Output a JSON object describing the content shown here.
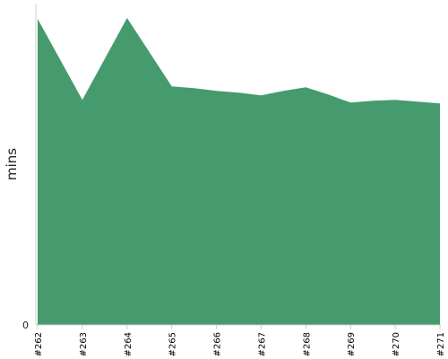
{
  "chart_data": {
    "type": "area",
    "ylabel": "mins",
    "xlabel": "",
    "title": "",
    "x": [
      "#262",
      "#263",
      "#264",
      "#265",
      "#266",
      "#267",
      "#268",
      "#269",
      "#270",
      "#271"
    ],
    "points": [
      {
        "x": 0.0,
        "y": 34.0
      },
      {
        "x": 1.0,
        "y": 25.0
      },
      {
        "x": 2.0,
        "y": 34.1
      },
      {
        "x": 3.0,
        "y": 26.5
      },
      {
        "x": 3.5,
        "y": 26.3
      },
      {
        "x": 4.0,
        "y": 26.0
      },
      {
        "x": 4.5,
        "y": 25.8
      },
      {
        "x": 5.0,
        "y": 25.5
      },
      {
        "x": 5.5,
        "y": 26.0
      },
      {
        "x": 6.0,
        "y": 26.4
      },
      {
        "x": 6.5,
        "y": 25.6
      },
      {
        "x": 7.0,
        "y": 24.7
      },
      {
        "x": 7.5,
        "y": 24.9
      },
      {
        "x": 8.0,
        "y": 25.0
      },
      {
        "x": 8.5,
        "y": 24.8
      },
      {
        "x": 9.0,
        "y": 24.6
      }
    ],
    "yticks": [
      0
    ],
    "ylim": [
      0,
      35.7
    ],
    "grid": false,
    "legend": "none",
    "color": "#459b6d"
  }
}
